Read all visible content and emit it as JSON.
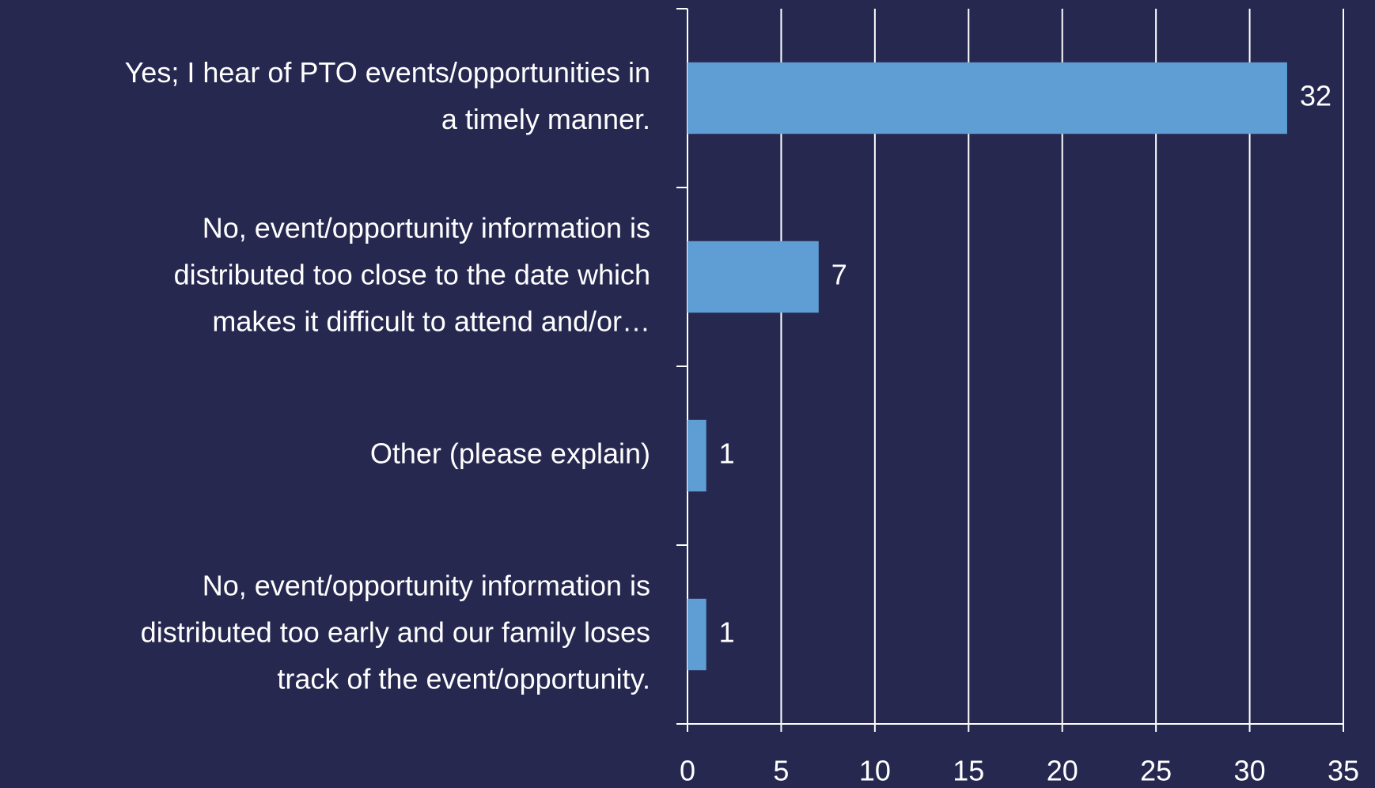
{
  "chart_data": {
    "type": "bar",
    "orientation": "horizontal",
    "categories": [
      [
        "Yes; I hear of PTO events/opportunities in",
        "a timely manner."
      ],
      [
        "No, event/opportunity information is",
        "distributed too close to the date which",
        "makes it difficult to attend and/or…"
      ],
      [
        "Other (please explain)"
      ],
      [
        "No, event/opportunity information is",
        "distributed too early and our family loses",
        "track of the event/opportunity."
      ]
    ],
    "values": [
      32,
      7,
      1,
      1
    ],
    "color": "#5f9ed4",
    "xlim": [
      0,
      35
    ],
    "xticks": [
      0,
      5,
      10,
      15,
      20,
      25,
      30,
      35
    ],
    "grid": true
  }
}
